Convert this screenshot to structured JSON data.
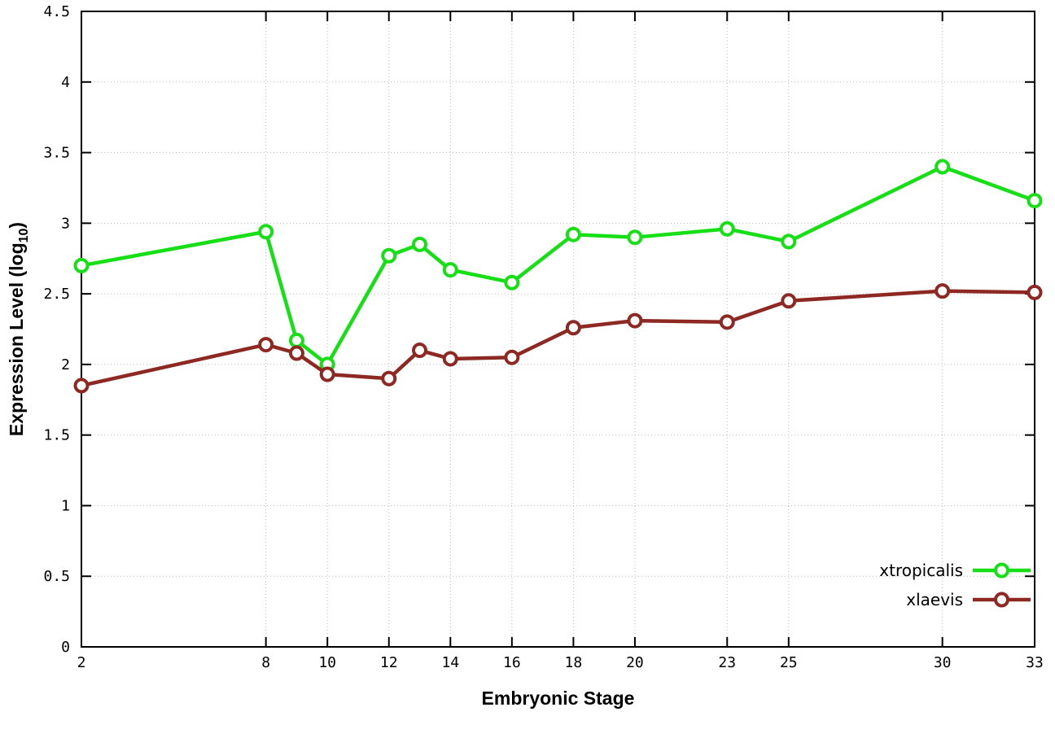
{
  "chart_data": {
    "type": "line",
    "title": "",
    "xlabel": "Embryonic Stage",
    "ylabel": {
      "text": "Expression Level (log",
      "subscript": "10",
      "suffix": ")"
    },
    "xlim": [
      2,
      33
    ],
    "ylim": [
      0,
      4.5
    ],
    "xticks": [
      2,
      8,
      10,
      12,
      14,
      16,
      18,
      20,
      23,
      25,
      30,
      33
    ],
    "yticks": [
      0,
      0.5,
      1,
      1.5,
      2,
      2.5,
      3,
      3.5,
      4,
      4.5
    ],
    "grid": true,
    "legend_position": "bottom-right",
    "x": [
      2,
      8,
      9,
      10,
      12,
      13,
      14,
      16,
      18,
      20,
      23,
      25,
      30,
      33
    ],
    "series": [
      {
        "name": "xtropicalis",
        "color": "#16df16",
        "values": [
          2.7,
          2.94,
          2.17,
          2.0,
          2.77,
          2.85,
          2.67,
          2.58,
          2.92,
          2.9,
          2.96,
          2.87,
          3.4,
          3.16
        ]
      },
      {
        "name": "xlaevis",
        "color": "#8e2823",
        "values": [
          1.85,
          2.14,
          2.08,
          1.93,
          1.9,
          2.1,
          2.04,
          2.05,
          2.26,
          2.31,
          2.3,
          2.45,
          2.52,
          2.51
        ]
      }
    ]
  },
  "colors": {
    "background": "#ffffff",
    "grid": "#bbbbbb",
    "axis": "#000000",
    "text": "#000000",
    "marker_fill": "#ffffff"
  }
}
